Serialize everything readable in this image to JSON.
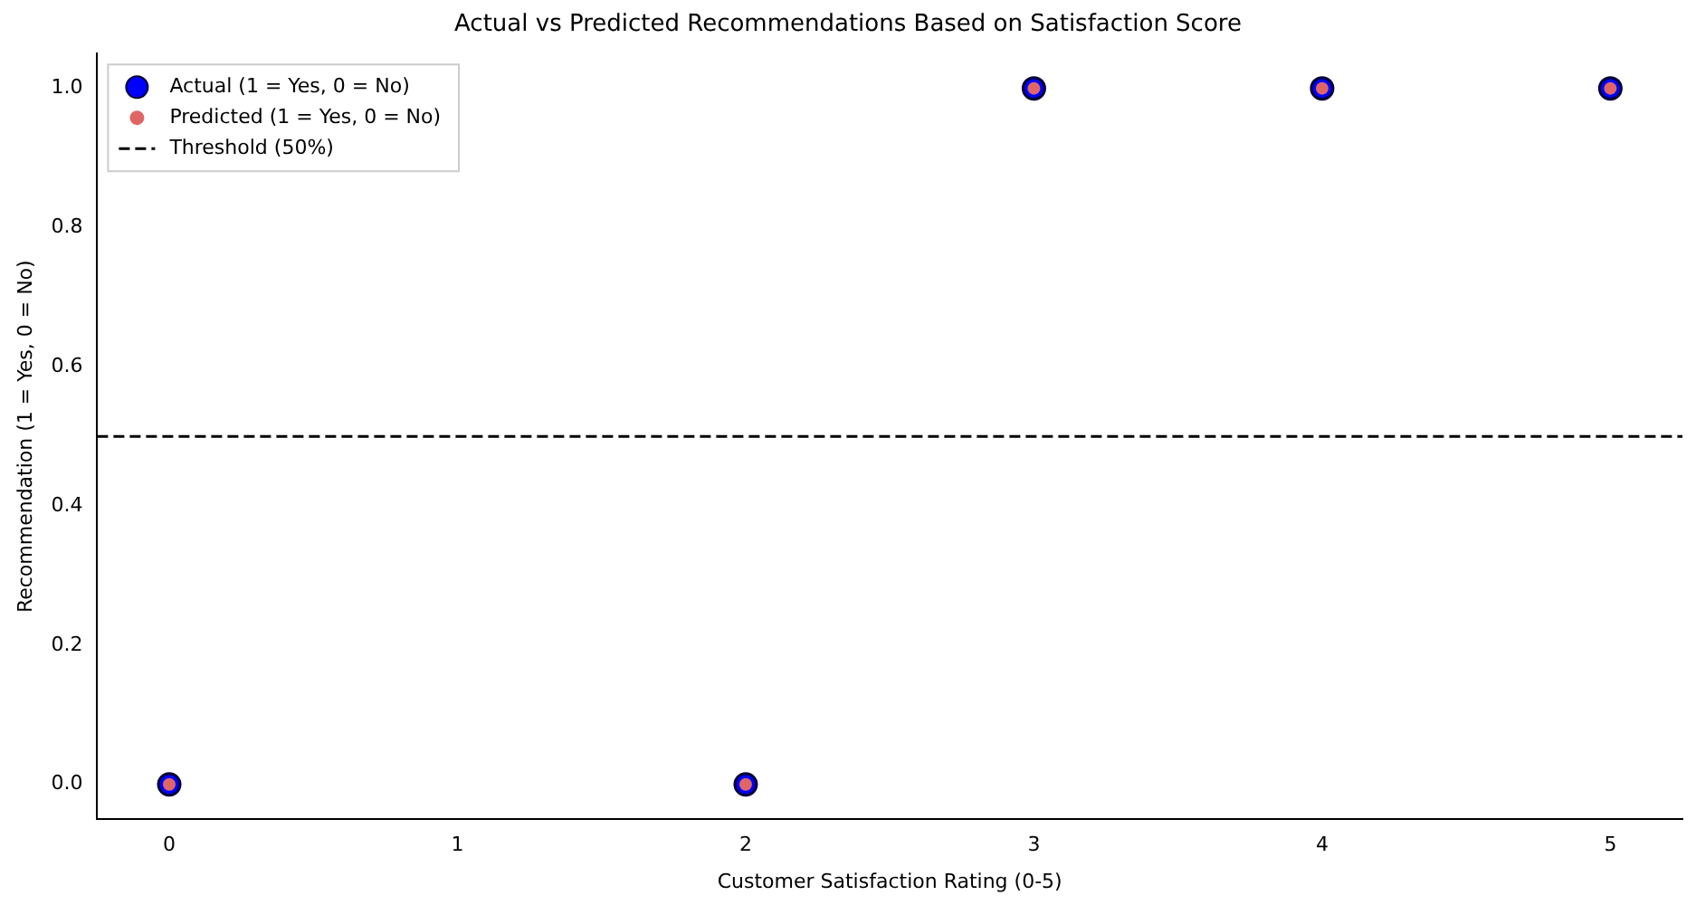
{
  "chart_data": {
    "type": "scatter",
    "title": "Actual vs Predicted Recommendations Based on Satisfaction Score",
    "xlabel": "Customer Satisfaction Rating (0-5)",
    "ylabel": "Recommendation (1 = Yes, 0 = No)",
    "x": [
      0,
      2,
      3,
      4,
      5
    ],
    "series": [
      {
        "name": "Actual (1 = Yes, 0 = No)",
        "color": "#0000ff",
        "values": [
          0,
          0,
          1,
          1,
          1
        ]
      },
      {
        "name": "Predicted (1 = Yes, 0 = No)",
        "color": "#e06666",
        "values": [
          0,
          0,
          1,
          1,
          1
        ]
      }
    ],
    "xlim": [
      -0.25,
      5.25
    ],
    "xticks": [
      0,
      1,
      2,
      3,
      4,
      5
    ],
    "ylim": [
      -0.05,
      1.05
    ],
    "yticks": [
      {
        "value": 0,
        "label": "0.0"
      },
      {
        "value": 0.2,
        "label": "0.2"
      },
      {
        "value": 0.4,
        "label": "0.4"
      },
      {
        "value": 0.6,
        "label": "0.6"
      },
      {
        "value": 0.8,
        "label": "0.8"
      },
      {
        "value": 1,
        "label": "1.0"
      }
    ],
    "ref_lines": [
      {
        "axis": "y",
        "value": 0.5,
        "label": "Threshold (50%)",
        "color": "#000000",
        "line_style": "dashed"
      }
    ],
    "legend": "top left",
    "grid": false,
    "marker": "circle"
  }
}
